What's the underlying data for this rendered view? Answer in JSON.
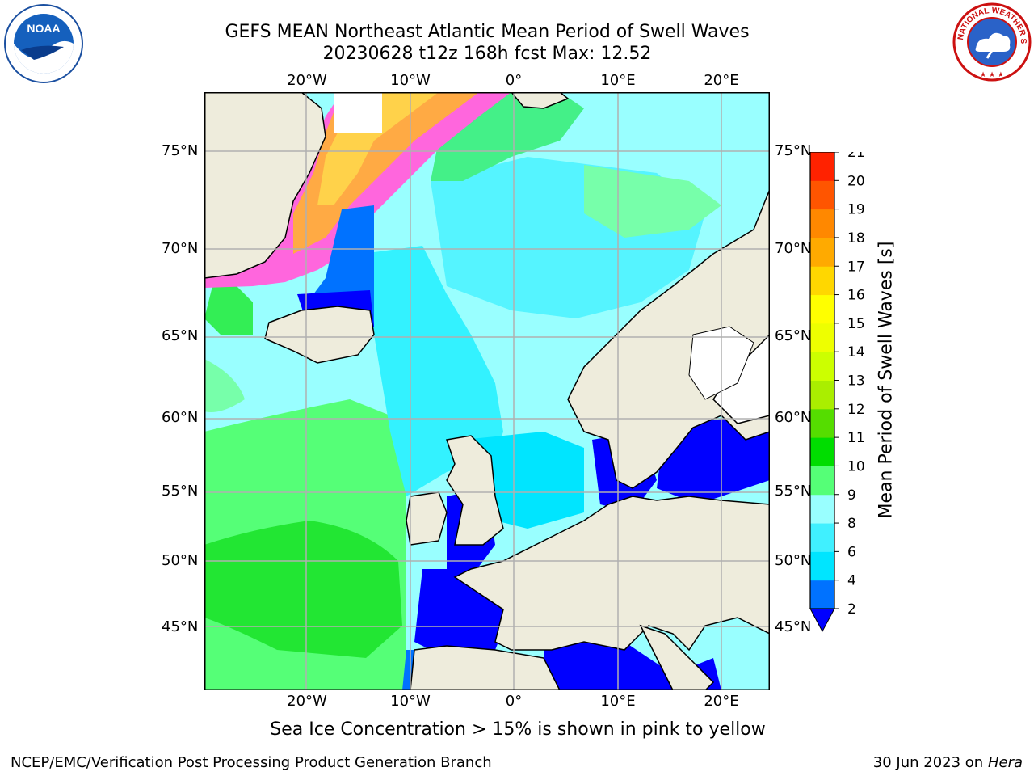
{
  "header": {
    "title_line1": "GEFS MEAN Northeast Atlantic Mean Period of Swell Waves",
    "title_line2": "20230628 t12z 168h fcst   Max: 12.52"
  },
  "map": {
    "lon_labels": [
      "20°W",
      "10°W",
      "0°",
      "10°E",
      "20°E"
    ],
    "lat_labels": [
      "75°N",
      "70°N",
      "65°N",
      "60°N",
      "55°N",
      "50°N",
      "45°N"
    ],
    "land_color": "#eeecdc",
    "ice_note": "Sea Ice Concentration > 15% is shown in pink to yellow"
  },
  "colorbar": {
    "label": "Mean Period of Swell Waves [s]",
    "ticks": [
      "2",
      "4",
      "6",
      "8",
      "9",
      "10",
      "11",
      "12",
      "13",
      "14",
      "15",
      "16",
      "17",
      "18",
      "19",
      "20",
      "21"
    ],
    "colors": [
      "#0072ff",
      "#00e5ff",
      "#40f0ff",
      "#99ffff",
      "#55ff77",
      "#00dd00",
      "#55dd00",
      "#aaee00",
      "#ccff00",
      "#eeff00",
      "#ffff00",
      "#ffd700",
      "#ffaa00",
      "#ff8800",
      "#ff5500",
      "#ff2200"
    ],
    "extend_color": "#0000ff"
  },
  "footer": {
    "credit": "NCEP/EMC/Verification Post Processing Product Generation Branch",
    "date_prefix": "30 Jun 2023 on",
    "date_machine": "Hera"
  },
  "logos": {
    "left": "NOAA",
    "right_text": "NATIONAL WEATHER SERVICE"
  }
}
